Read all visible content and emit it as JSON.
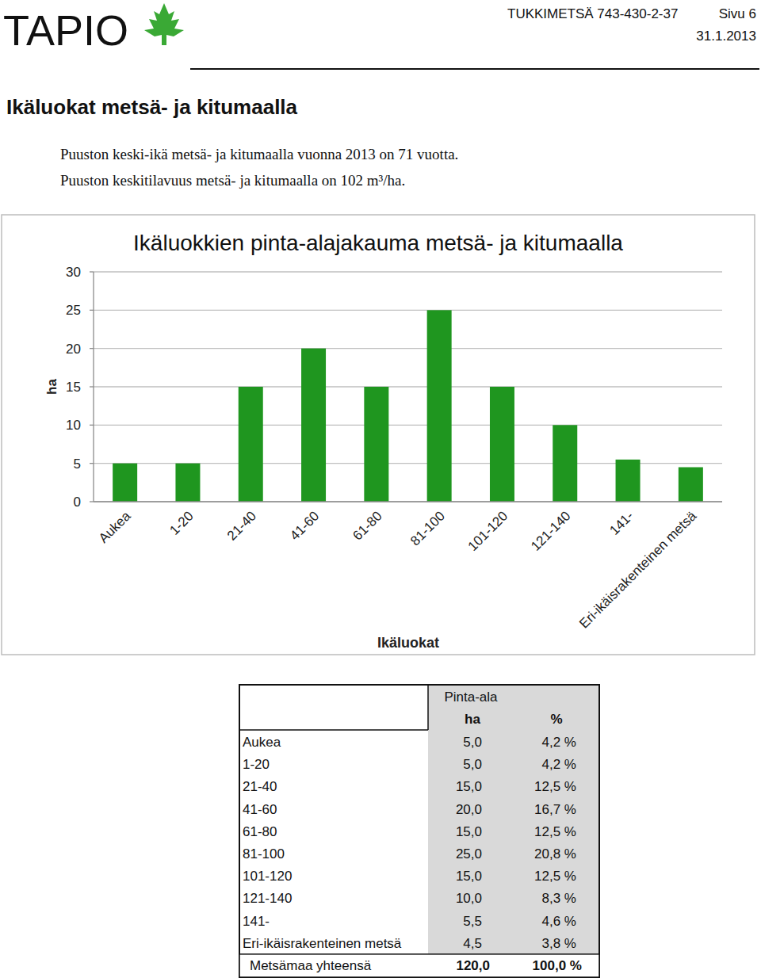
{
  "header": {
    "logo": "TAPIO",
    "document": "TUKKIMETSÄ 743-430-2-37",
    "page": "Sivu 6",
    "date": "31.1.2013"
  },
  "heading": "Ikäluokat metsä- ja kitumaalla",
  "notes": [
    "Puuston keski-ikä metsä- ja kitumaalla vuonna 2013 on 71 vuotta.",
    "Puuston keskitilavuus metsä- ja kitumaalla on 102 m³/ha."
  ],
  "chart_data": {
    "type": "bar",
    "title": "Ikäluokkien pinta-alajakauma metsä- ja kitumaalla",
    "x_label": "Ikäluokat",
    "y_label": "ha",
    "categories": [
      "Aukea",
      "1-20",
      "21-40",
      "41-60",
      "61-80",
      "81-100",
      "101-120",
      "121-140",
      "141-",
      "Eri-ikäisrakenteinen metsä"
    ],
    "values": [
      5,
      5,
      15,
      20,
      15,
      25,
      15,
      10,
      5.5,
      4.5
    ],
    "color": "#1f961f",
    "ylim": [
      0,
      30
    ],
    "yticks": [
      0,
      5,
      10,
      15,
      20,
      25,
      30
    ],
    "grid": true
  },
  "table": {
    "group_header": "Pinta-ala",
    "columns": [
      "ha",
      "%"
    ],
    "rows": [
      [
        "Aukea",
        "5,0",
        "4,2 %"
      ],
      [
        "1-20",
        "5,0",
        "4,2 %"
      ],
      [
        "21-40",
        "15,0",
        "12,5 %"
      ],
      [
        "41-60",
        "20,0",
        "16,7 %"
      ],
      [
        "61-80",
        "15,0",
        "12,5 %"
      ],
      [
        "81-100",
        "25,0",
        "20,8 %"
      ],
      [
        "101-120",
        "15,0",
        "12,5 %"
      ],
      [
        "121-140",
        "10,0",
        "8,3 %"
      ],
      [
        "141-",
        "5,5",
        "4,6 %"
      ],
      [
        "Eri-ikäisrakenteinen metsä",
        "4,5",
        "3,8 %"
      ]
    ],
    "total": [
      "Metsämaa yhteensä",
      "120,0",
      "100,0 %"
    ]
  }
}
